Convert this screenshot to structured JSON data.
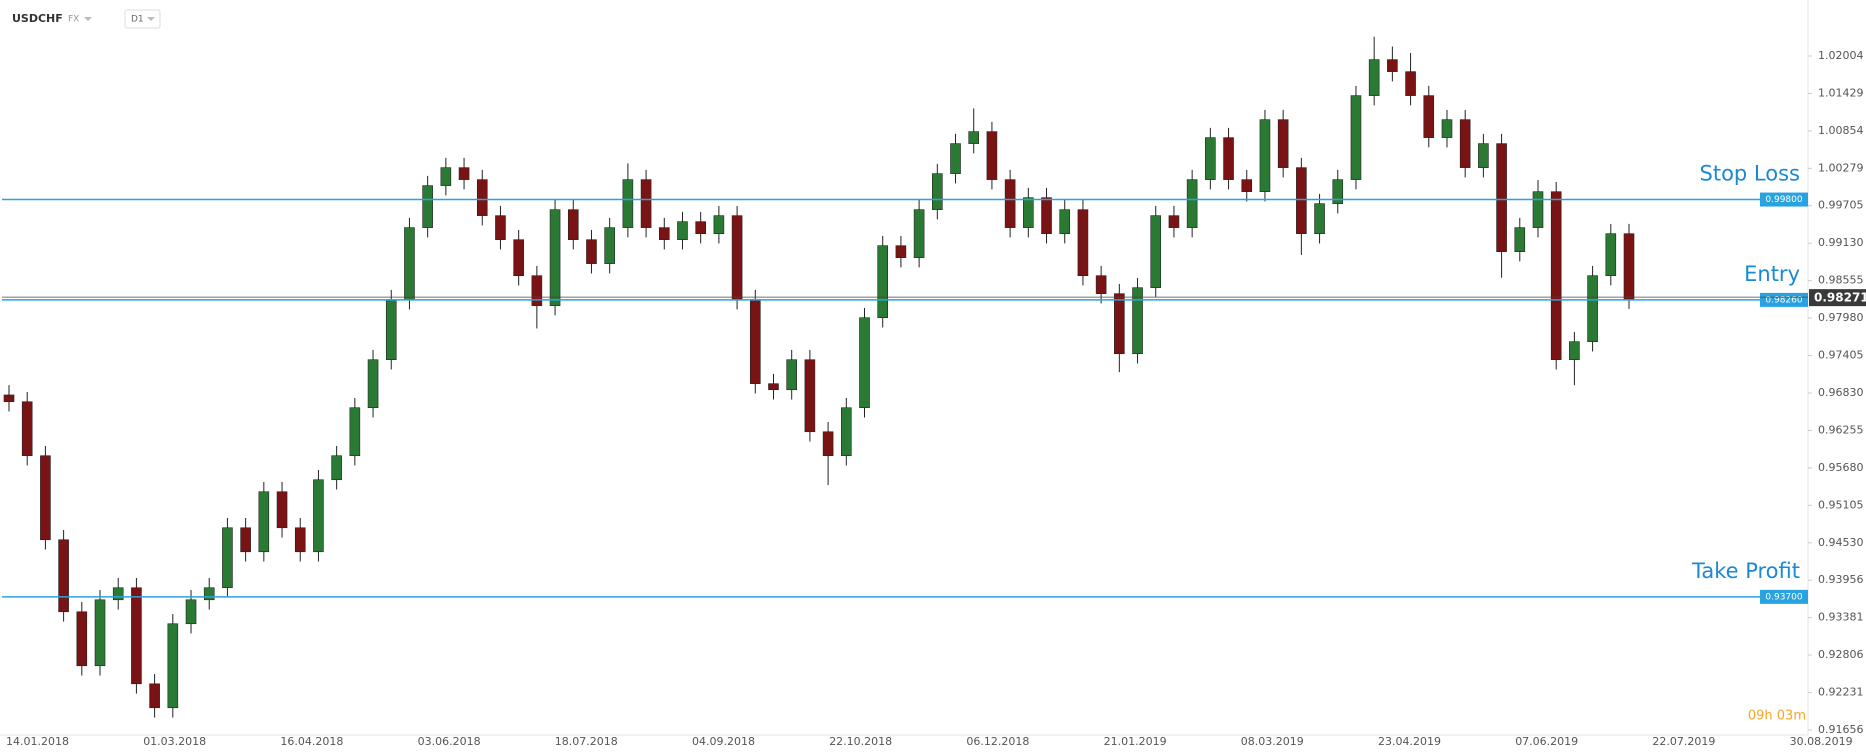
{
  "header": {
    "symbol": "USDCHF",
    "market": "FX",
    "interval": "D1"
  },
  "chart_data": {
    "type": "candlestick",
    "xtick_labels": [
      "14.01.2018",
      "01.03.2018",
      "16.04.2018",
      "03.06.2018",
      "18.07.2018",
      "04.09.2018",
      "22.10.2018",
      "06.12.2018",
      "21.01.2019",
      "08.03.2019",
      "23.04.2019",
      "07.06.2019",
      "22.07.2019",
      "30.08.2019"
    ],
    "ylim": [
      0.91579,
      1.02864
    ],
    "yticks": [
      1.02004,
      1.01429,
      1.00854,
      1.00279,
      0.99705,
      {
        "value": 0.9913,
        "label": "0.99130"
      },
      0.98555,
      {
        "value": 0.9798,
        "label": "0.97980"
      },
      0.97405,
      {
        "value": 0.9683,
        "label": "0.96830"
      },
      0.96255,
      {
        "value": 0.9568,
        "label": "0.95680"
      },
      0.95105,
      {
        "value": 0.9453,
        "label": "0.94530"
      },
      0.93956,
      0.93381,
      0.92806,
      0.92231,
      0.91656
    ],
    "up_color": "#2b7a34",
    "down_color": "#7a1414",
    "level_color": "#29a3e0",
    "open": [
      0.968,
      0.96696,
      0.95867,
      0.94577,
      0.93471,
      0.92642,
      0.93655,
      0.9384,
      0.92365,
      0.91997,
      0.93287,
      0.93655,
      0.9384,
      0.94761,
      0.94392,
      0.95314,
      0.94761,
      0.94392,
      0.95498,
      0.95867,
      0.96604,
      0.97341,
      0.98263,
      0.99369,
      1.00014,
      1.0029,
      1.00106,
      0.99553,
      0.99184,
      0.98631,
      0.98171,
      0.99645,
      0.99184,
      0.98816,
      0.99369,
      1.00106,
      0.99369,
      0.99184,
      0.99461,
      0.99276,
      0.99553,
      0.98263,
      0.96973,
      0.9688,
      0.97341,
      0.96235,
      0.95867,
      0.96604,
      0.97986,
      0.99092,
      0.98908,
      0.99645,
      1.00198,
      1.00659,
      1.00843,
      1.00106,
      0.99369,
      0.99829,
      0.99276,
      0.99645,
      0.98631,
      0.98355,
      0.97433,
      0.98447,
      0.99553,
      0.99369,
      1.00106,
      1.00751,
      1.00106,
      0.99921,
      1.01027,
      1.0029,
      0.99276,
      0.99737,
      1.00106,
      1.01396,
      1.01949,
      1.01764,
      1.01396,
      1.00751,
      1.01027,
      1.0029,
      1.00659,
      0.99,
      0.99369,
      0.99921,
      0.97341,
      0.97618,
      0.98631,
      0.99276
    ],
    "high": [
      0.9695,
      0.96846,
      0.96017,
      0.94727,
      0.93621,
      0.93805,
      0.9399,
      0.9399,
      0.92515,
      0.93437,
      0.93805,
      0.9399,
      0.94911,
      0.94911,
      0.95464,
      0.95464,
      0.94911,
      0.95648,
      0.96017,
      0.96754,
      0.97491,
      0.98413,
      0.99519,
      1.00164,
      1.0044,
      1.0044,
      1.00256,
      0.99703,
      0.99334,
      0.98781,
      0.99795,
      0.99795,
      0.99334,
      0.99519,
      1.00356,
      1.00256,
      0.99519,
      0.99611,
      0.99611,
      0.99703,
      0.99703,
      0.98413,
      0.97123,
      0.97491,
      0.97491,
      0.96385,
      0.96754,
      0.98136,
      0.99242,
      0.99242,
      0.99795,
      1.00348,
      1.00809,
      1.012,
      1.00993,
      1.00256,
      0.99979,
      0.99979,
      0.99795,
      0.99795,
      0.98781,
      0.98505,
      0.98597,
      0.99703,
      0.99703,
      1.00256,
      1.00901,
      1.00901,
      1.00256,
      1.01177,
      1.01177,
      1.0044,
      0.99887,
      1.00256,
      1.01546,
      1.023,
      1.0215,
      1.0205,
      1.01546,
      1.01177,
      1.01177,
      1.00809,
      1.00809,
      0.99519,
      1.001,
      1.00071,
      0.97768,
      0.98781,
      0.99426,
      0.99426
    ],
    "low": [
      0.96546,
      0.95717,
      0.94427,
      0.93321,
      0.92492,
      0.92492,
      0.93505,
      0.92215,
      0.91847,
      0.91847,
      0.93137,
      0.93505,
      0.9369,
      0.94242,
      0.94242,
      0.94611,
      0.94242,
      0.94242,
      0.95348,
      0.95717,
      0.96454,
      0.97191,
      0.98113,
      0.99219,
      0.99864,
      0.99956,
      0.99403,
      0.99034,
      0.98481,
      0.97821,
      0.98021,
      0.99034,
      0.98666,
      0.98666,
      0.99219,
      0.99219,
      0.99034,
      0.99034,
      0.99126,
      0.99126,
      0.98113,
      0.96823,
      0.9673,
      0.9673,
      0.96085,
      0.95417,
      0.95717,
      0.96454,
      0.97836,
      0.98758,
      0.98758,
      0.99495,
      1.00048,
      1.00509,
      0.99956,
      0.99219,
      0.99219,
      0.99126,
      0.99126,
      0.98481,
      0.98205,
      0.9715,
      0.97283,
      0.98297,
      0.99219,
      0.99219,
      0.99956,
      0.99956,
      0.99771,
      0.99771,
      1.0014,
      0.9895,
      0.99126,
      0.99587,
      0.99956,
      1.01246,
      1.01614,
      1.01246,
      1.00601,
      1.00601,
      1.0014,
      1.0014,
      0.986,
      0.9885,
      0.99219,
      0.97191,
      0.9695,
      0.97468,
      0.98481,
      0.98121
    ],
    "close": [
      0.96696,
      0.95867,
      0.94577,
      0.93471,
      0.92642,
      0.93655,
      0.9384,
      0.92365,
      0.91997,
      0.93287,
      0.93655,
      0.9384,
      0.94761,
      0.94392,
      0.95314,
      0.94761,
      0.94392,
      0.95498,
      0.95867,
      0.96604,
      0.97341,
      0.98263,
      0.99369,
      1.00014,
      1.0029,
      1.00106,
      0.99553,
      0.99184,
      0.98631,
      0.98171,
      0.99645,
      0.99184,
      0.98816,
      0.99369,
      1.00106,
      0.99369,
      0.99184,
      0.99461,
      0.99276,
      0.99553,
      0.98263,
      0.96973,
      0.9688,
      0.97341,
      0.96235,
      0.95867,
      0.96604,
      0.97986,
      0.99092,
      0.98908,
      0.99645,
      1.00198,
      1.00659,
      1.00843,
      1.00106,
      0.99369,
      0.99829,
      0.99276,
      0.99645,
      0.98631,
      0.98355,
      0.97433,
      0.98447,
      0.99553,
      0.99369,
      1.00106,
      1.00751,
      1.00106,
      0.99921,
      1.01027,
      1.0029,
      0.99276,
      0.99737,
      1.00106,
      1.01396,
      1.01949,
      1.01764,
      1.01396,
      1.00751,
      1.01027,
      1.0029,
      1.00659,
      0.99,
      0.99369,
      0.99921,
      0.97341,
      0.97618,
      0.98631,
      0.99276,
      0.98271
    ],
    "levels": [
      {
        "name": "Stop Loss",
        "value": 0.998,
        "label": "0.99800"
      },
      {
        "name": "Entry",
        "value": 0.9826,
        "label": "0.98260"
      },
      {
        "name": "Take Profit",
        "value": 0.937,
        "label": "0.93700"
      }
    ],
    "last_price": 0.98271,
    "timer": "09h 03m"
  }
}
